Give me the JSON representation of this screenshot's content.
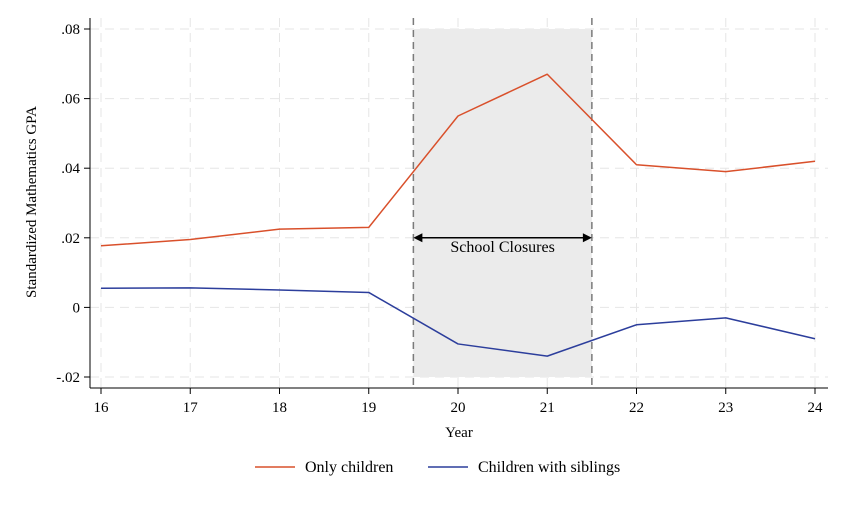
{
  "chart_data": {
    "type": "line",
    "title": "",
    "xlabel": "Year",
    "ylabel": "Standardized Mathematics GPA",
    "x": [
      16,
      17,
      18,
      19,
      20,
      21,
      22,
      23,
      24
    ],
    "x_tick_labels": [
      "16",
      "17",
      "18",
      "19",
      "20",
      "21",
      "22",
      "23",
      "24"
    ],
    "xlim": [
      16,
      24
    ],
    "ylim": [
      -0.023,
      0.083
    ],
    "y_ticks": [
      -0.02,
      0,
      0.02,
      0.04,
      0.06,
      0.08
    ],
    "y_tick_labels": [
      "-.02",
      "0",
      ".02",
      ".04",
      ".06",
      ".08"
    ],
    "grid": true,
    "legend_position": "bottom",
    "series": [
      {
        "name": "Only children",
        "color": "#d9502b",
        "values": [
          0.0177,
          0.0195,
          0.0225,
          0.023,
          0.055,
          0.067,
          0.041,
          0.039,
          0.042
        ]
      },
      {
        "name": "Children with siblings",
        "color": "#2c3e9c",
        "values": [
          0.0055,
          0.0056,
          0.005,
          0.0043,
          -0.0105,
          -0.014,
          -0.005,
          -0.003,
          -0.009
        ]
      }
    ],
    "shaded_region": {
      "x_start": 19.5,
      "x_end": 21.5,
      "y_start": -0.02,
      "y_end": 0.08,
      "color": "#ebebeb",
      "line_color": "#7a7a7a"
    },
    "annotation": {
      "text": "School Closures",
      "arrow_from": 19.5,
      "arrow_to": 21.5,
      "y": 0.02
    }
  }
}
